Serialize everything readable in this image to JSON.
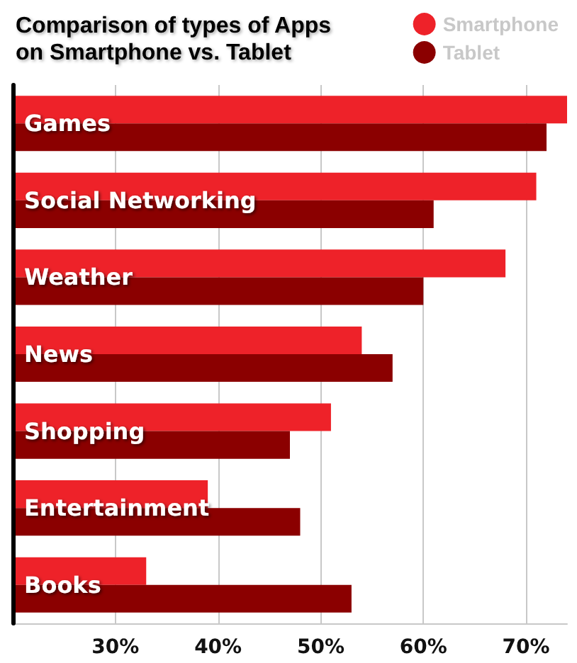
{
  "chart_data": {
    "type": "bar",
    "orientation": "horizontal",
    "title": "Comparison of types of Apps\non Smartphone vs. Tablet",
    "categories": [
      "Games",
      "Social Networking",
      "Weather",
      "News",
      "Shopping",
      "Entertainment",
      "Books"
    ],
    "series": [
      {
        "name": "Smartphone",
        "color": "#ee2229",
        "values": [
          74,
          71,
          68,
          54,
          51,
          39,
          33
        ]
      },
      {
        "name": "Tablet",
        "color": "#8b0000",
        "values": [
          72,
          61,
          60,
          57,
          47,
          48,
          53
        ]
      }
    ],
    "xlim": [
      20,
      74
    ],
    "xticks": [
      {
        "value": 30,
        "label": "30%"
      },
      {
        "value": 40,
        "label": "40%"
      },
      {
        "value": 50,
        "label": "50%"
      },
      {
        "value": 60,
        "label": "60%"
      },
      {
        "value": 70,
        "label": "70%"
      }
    ],
    "grid": "x",
    "legend": "top right"
  }
}
